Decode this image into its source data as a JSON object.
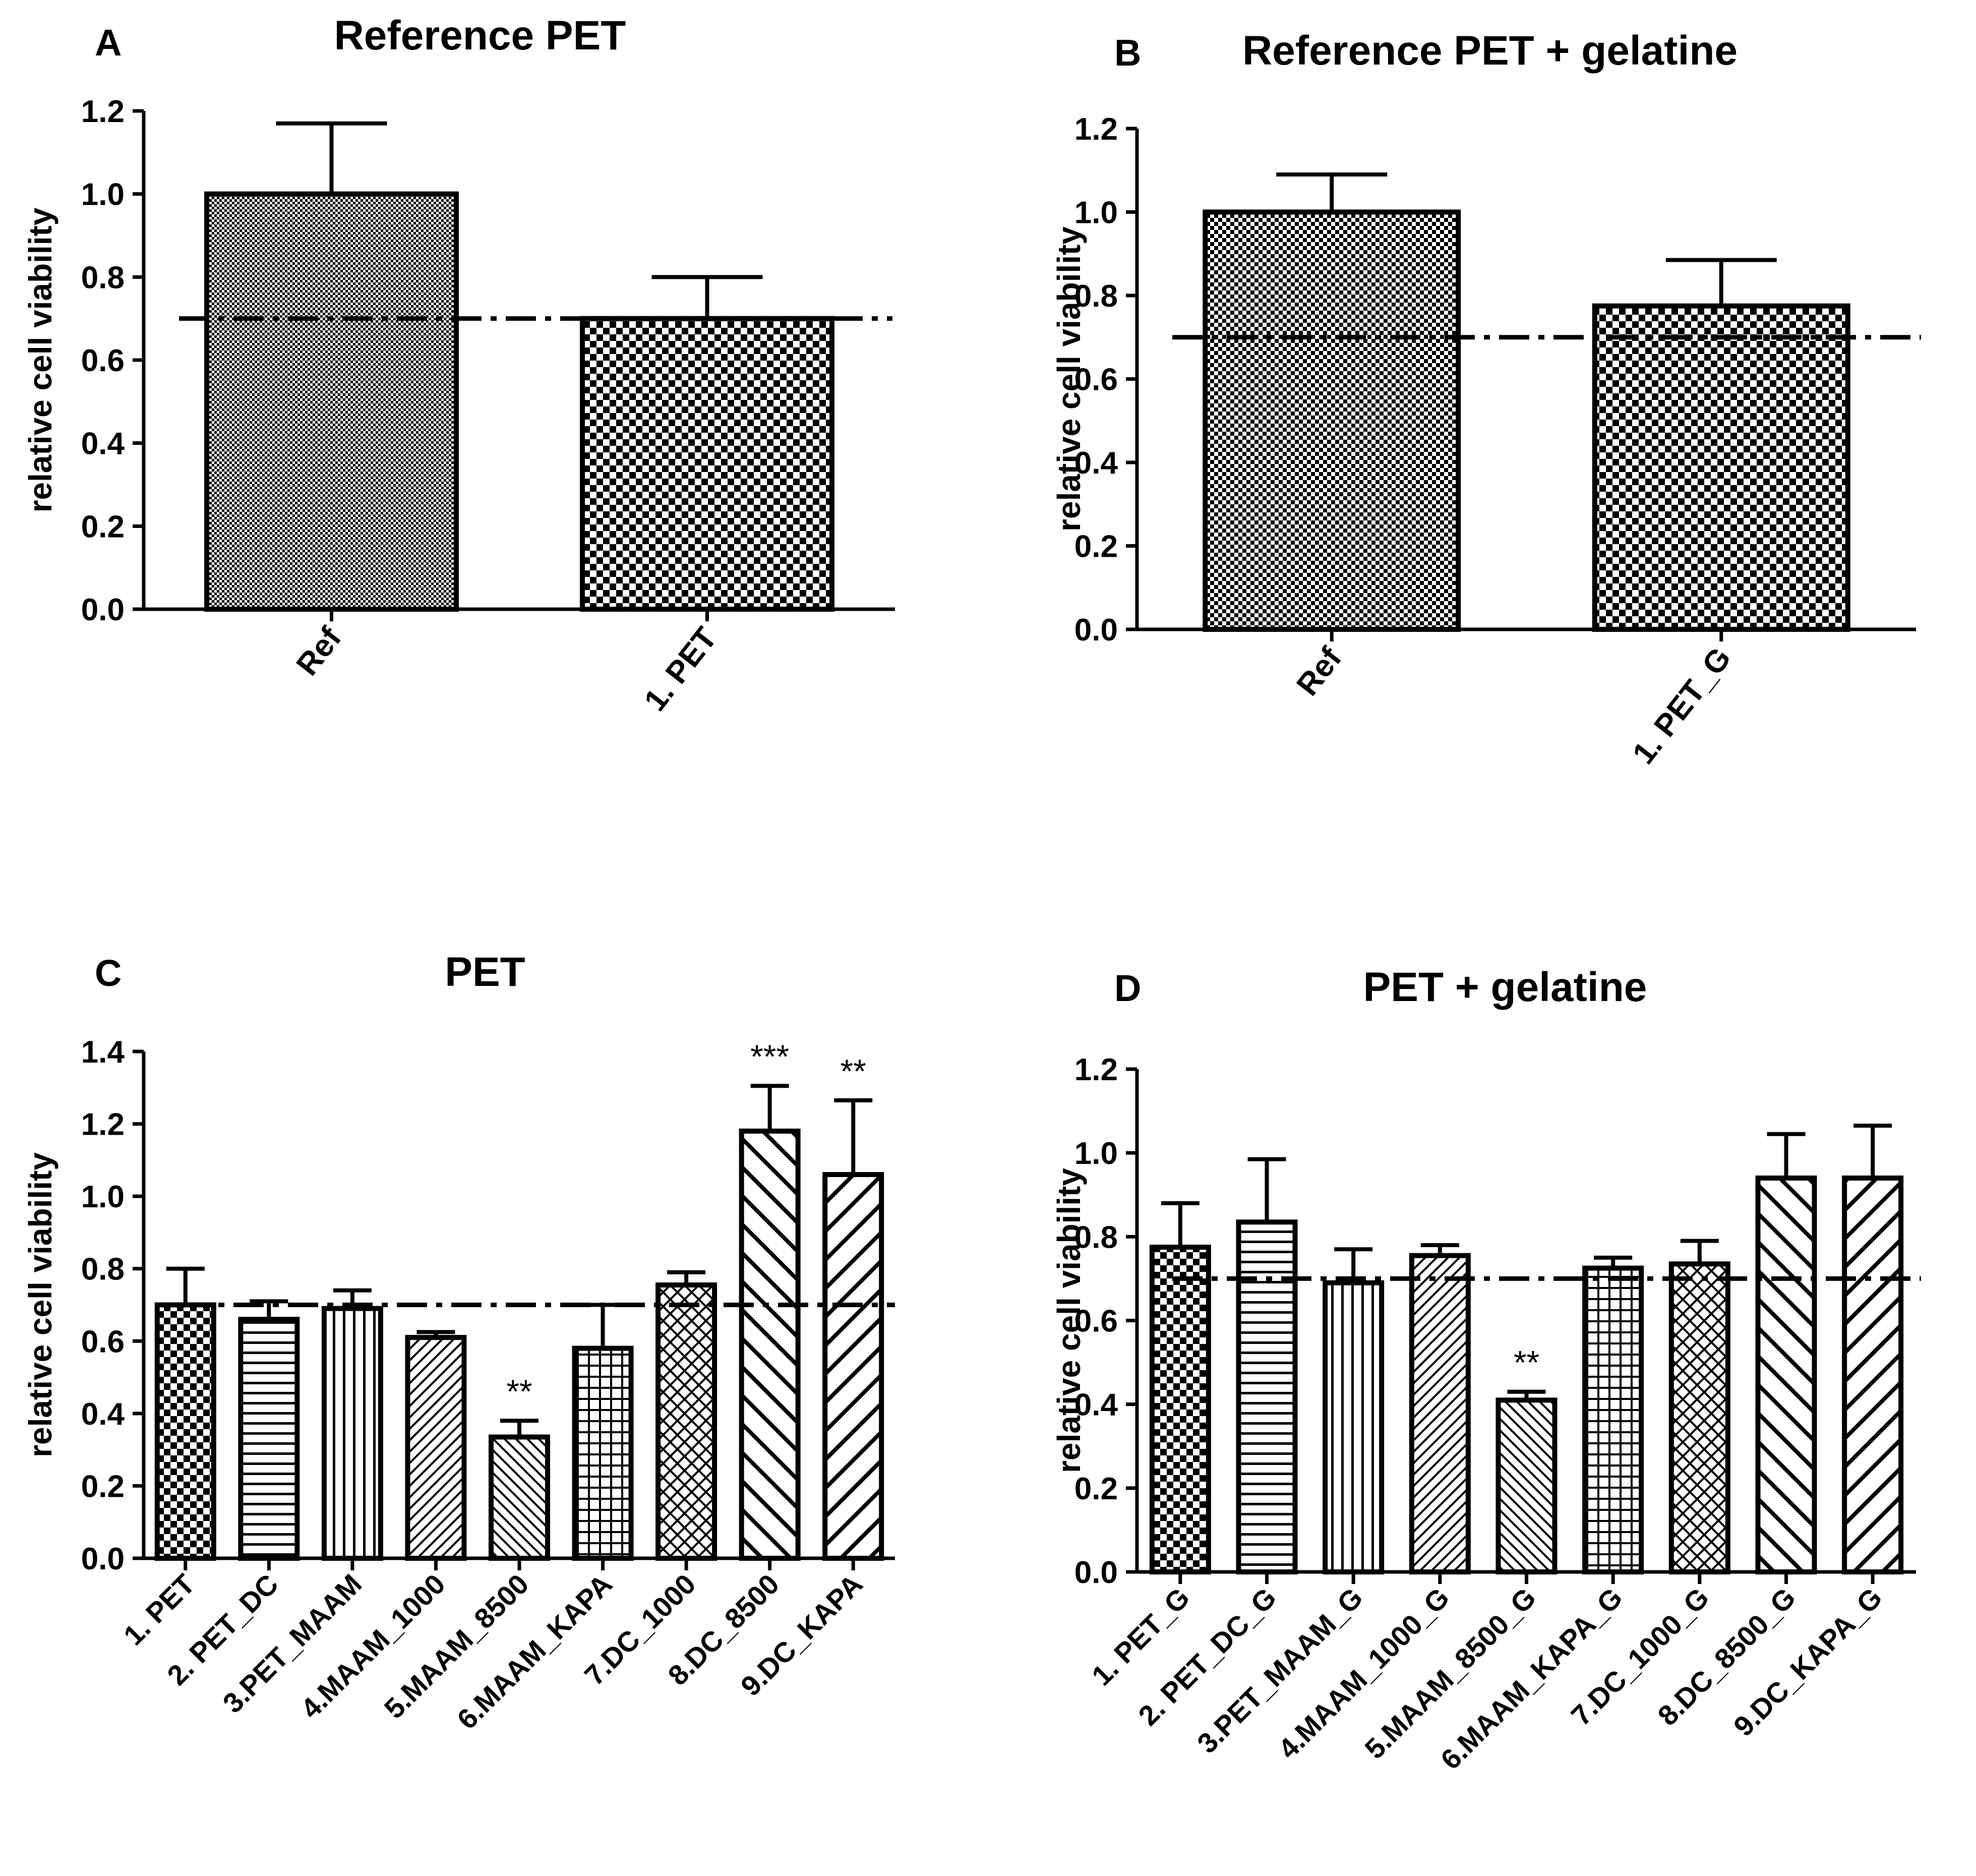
{
  "figure": {
    "description_panels": [
      "A",
      "B",
      "C",
      "D"
    ]
  },
  "chart_data": [
    {
      "panel": "A",
      "type": "bar",
      "title": "Reference PET",
      "xlabel": "",
      "ylabel": "relative cell viability",
      "ylim": [
        0,
        1.2
      ],
      "yticks": [
        "0.0",
        "0.2",
        "0.4",
        "0.6",
        "0.8",
        "1.0",
        "1.2"
      ],
      "categories": [
        "Ref",
        "1. PET"
      ],
      "values": [
        1.0,
        0.7
      ],
      "errors": [
        0.17,
        0.1
      ],
      "patterns": [
        "fine-check",
        "checker"
      ],
      "significance": [
        "",
        ""
      ],
      "threshold": 0.7
    },
    {
      "panel": "B",
      "type": "bar",
      "title": "Reference PET + gelatine",
      "xlabel": "",
      "ylabel": "relative cell viability",
      "ylim": [
        0,
        1.2
      ],
      "yticks": [
        "0.0",
        "0.2",
        "0.4",
        "0.6",
        "0.8",
        "1.0",
        "1.2"
      ],
      "categories": [
        "Ref",
        "1. PET_G"
      ],
      "values": [
        1.0,
        0.775
      ],
      "errors": [
        0.09,
        0.11
      ],
      "patterns": [
        "mid-check",
        "checker"
      ],
      "significance": [
        "",
        ""
      ],
      "threshold": 0.7
    },
    {
      "panel": "C",
      "type": "bar",
      "title": "PET",
      "xlabel": "",
      "ylabel": "relative cell viability",
      "ylim": [
        0,
        1.4
      ],
      "yticks": [
        "0.0",
        "0.2",
        "0.4",
        "0.6",
        "0.8",
        "1.0",
        "1.2",
        "1.4"
      ],
      "categories": [
        "1. PET",
        "2. PET_DC",
        "3.PET_MAAM",
        "4.MAAM_1000",
        "5.MAAM_8500",
        "6.MAAM_KAPA",
        "7.DC_1000",
        "8.DC_8500",
        "9.DC_KAPA"
      ],
      "values": [
        0.7,
        0.66,
        0.69,
        0.61,
        0.335,
        0.58,
        0.755,
        1.18,
        1.06
      ],
      "errors": [
        0.1,
        0.05,
        0.05,
        0.015,
        0.045,
        0.12,
        0.035,
        0.125,
        0.205
      ],
      "patterns": [
        "checker",
        "hlines",
        "vlines",
        "diag-fine",
        "diag-med",
        "grid",
        "diamond",
        "diag-bold",
        "diag-bold2"
      ],
      "significance": [
        "",
        "",
        "",
        "",
        "**",
        "",
        "",
        "***",
        "**"
      ],
      "threshold": 0.7
    },
    {
      "panel": "D",
      "type": "bar",
      "title": "PET + gelatine",
      "xlabel": "",
      "ylabel": "relative cell viability",
      "ylim": [
        0,
        1.2
      ],
      "yticks": [
        "0.0",
        "0.2",
        "0.4",
        "0.6",
        "0.8",
        "1.0",
        "1.2"
      ],
      "categories": [
        "1. PET_G",
        "2. PET_DC_G",
        "3.PET_MAAM_G",
        "4.MAAM_1000_G",
        "5.MAAM_8500_G",
        "6.MAAM_KAPA_G",
        "7.DC_1000_G",
        "8.DC_8500_G",
        "9.DC_KAPA_G"
      ],
      "values": [
        0.775,
        0.835,
        0.69,
        0.755,
        0.41,
        0.725,
        0.735,
        0.94,
        0.94
      ],
      "errors": [
        0.105,
        0.15,
        0.08,
        0.025,
        0.02,
        0.025,
        0.055,
        0.105,
        0.125
      ],
      "patterns": [
        "checker",
        "hlines",
        "vlines",
        "diag-fine",
        "diag-med",
        "grid",
        "diamond",
        "diag-bold",
        "diag-bold2"
      ],
      "significance": [
        "",
        "",
        "",
        "",
        "**",
        "",
        "",
        "",
        ""
      ],
      "threshold": 0.7
    }
  ]
}
